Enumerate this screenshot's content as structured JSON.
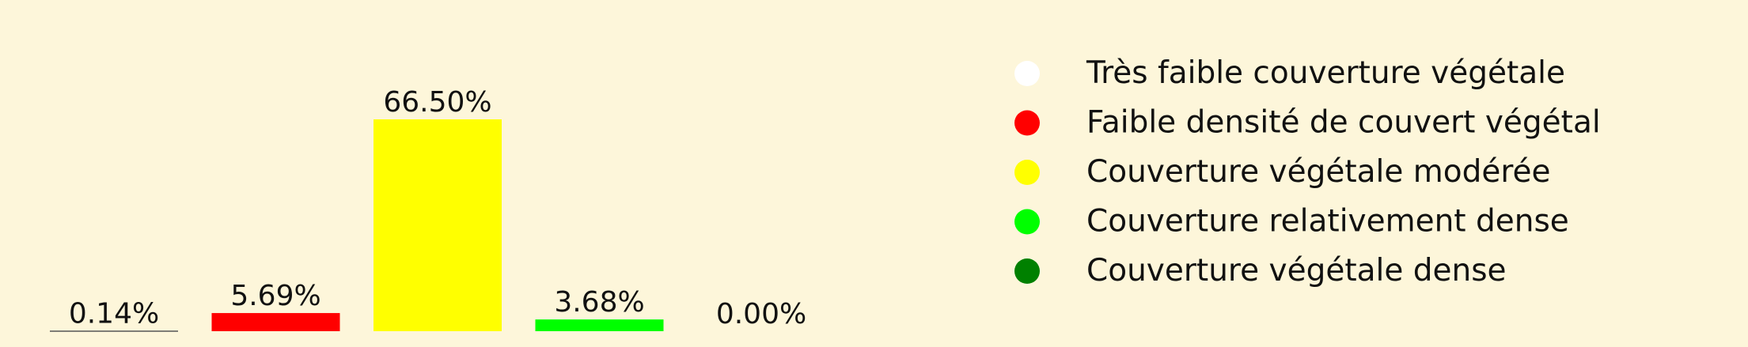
{
  "chart_data": {
    "type": "bar",
    "categories": [
      "Très faible couverture végétale",
      "Faible densité de couvert végétal",
      "Couverture végétale modérée",
      "Couverture relativement dense",
      "Couverture végétale dense"
    ],
    "values": [
      0.14,
      5.69,
      66.5,
      3.68,
      0.0
    ],
    "value_labels": [
      "0.14%",
      "5.69%",
      "66.50%",
      "3.68%",
      "0.00%"
    ],
    "colors": [
      "#ffffff",
      "#ff0000",
      "#ffff00",
      "#00ff00",
      "#008000"
    ],
    "ylim": [
      0,
      66.5
    ],
    "grid": false,
    "legend_position": "right",
    "title": "",
    "xlabel": "",
    "ylabel": ""
  },
  "background_color": "#fdf6da"
}
